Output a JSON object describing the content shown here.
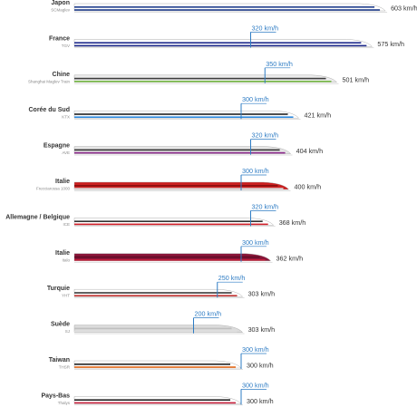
{
  "chart_data": {
    "type": "bar",
    "categories": [
      {
        "country": "Japon",
        "model": "SCMaglev"
      },
      {
        "country": "France",
        "model": "TGV"
      },
      {
        "country": "Chine",
        "model": "Shanghai Maglev Train"
      },
      {
        "country": "Corée du Sud",
        "model": "KTX"
      },
      {
        "country": "Espagne",
        "model": "AVE"
      },
      {
        "country": "Italie",
        "model": "Frecciarossa 1000"
      },
      {
        "country": "Allemagne / Belgique",
        "model": "ICE"
      },
      {
        "country": "Italie",
        "model": "Italo"
      },
      {
        "country": "Turquie",
        "model": "YHT"
      },
      {
        "country": "Suède",
        "model": "SJ"
      },
      {
        "country": "Taiwan",
        "model": "THSR"
      },
      {
        "country": "Pays-Bas",
        "model": "Thalys"
      }
    ],
    "series": [
      {
        "values": [
          603,
          575,
          501,
          421,
          404,
          400,
          368,
          362,
          303,
          303,
          300,
          300
        ]
      },
      {
        "values": [
          null,
          320,
          350,
          300,
          320,
          300,
          320,
          300,
          250,
          200,
          300,
          300
        ]
      }
    ],
    "value_format": "{v} km/h",
    "colors": {
      "operating_line": "#2e7cc4",
      "trains": [
        {
          "body": "#ffffff",
          "stripe": "#1e3c8c",
          "accent": "#1e3c8c"
        },
        {
          "body": "#ffffff",
          "stripe": "#1e2a8c",
          "accent": "#1e2a8c"
        },
        {
          "body": "#ececec",
          "stripe": "#3e3e3e",
          "accent": "#7cbf4a"
        },
        {
          "body": "#ffffff",
          "stripe": "#222222",
          "accent": "#2e8ae0"
        },
        {
          "body": "#e6e6e6",
          "stripe": "#333333",
          "accent": "#8c2a8c"
        },
        {
          "body": "#cc1f1f",
          "stripe": "#8a0e0e",
          "accent": "#dcdcdc"
        },
        {
          "body": "#ffffff",
          "stripe": "#333333",
          "accent": "#d2202a"
        },
        {
          "body": "#8a1538",
          "stripe": "#5e0c26",
          "accent": "#c41e3a"
        },
        {
          "body": "#ffffff",
          "stripe": "#3a3a3a",
          "accent": "#c0302e"
        },
        {
          "body": "#dcdcdc",
          "stripe": "#bfbfbf",
          "accent": "#e0e0e0"
        },
        {
          "body": "#ffffff",
          "stripe": "#222222",
          "accent": "#e56a1a"
        },
        {
          "body": "#ffffff",
          "stripe": "#222222",
          "accent": "#c8203c"
        }
      ]
    }
  }
}
